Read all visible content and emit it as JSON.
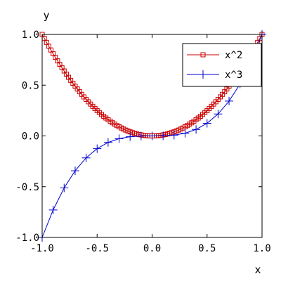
{
  "chart_data": {
    "type": "line",
    "xlabel": "x",
    "ylabel": "y",
    "xlim": [
      -1.0,
      1.0
    ],
    "ylim": [
      -1.0,
      1.0
    ],
    "grid": false,
    "legend_position": "top-right",
    "x_ticks": [
      -1.0,
      -0.5,
      0.0,
      0.5,
      1.0
    ],
    "x_tick_labels": [
      "-1.0",
      "-0.5",
      "0.0",
      "0.5",
      "1.0"
    ],
    "y_ticks": [
      -1.0,
      -0.5,
      0.0,
      0.5,
      1.0
    ],
    "y_tick_labels": [
      "-1.0",
      "-0.5",
      "0.0",
      "0.5",
      "1.0"
    ],
    "series": [
      {
        "name": "x^2",
        "color": "#cc0000",
        "marker": "square",
        "x": [
          -1.0,
          -0.98,
          -0.96,
          -0.94,
          -0.92,
          -0.9,
          -0.88,
          -0.86,
          -0.84,
          -0.82,
          -0.8,
          -0.78,
          -0.76,
          -0.74,
          -0.72,
          -0.7,
          -0.68,
          -0.66,
          -0.64,
          -0.62,
          -0.6,
          -0.58,
          -0.56,
          -0.54,
          -0.52,
          -0.5,
          -0.48,
          -0.46,
          -0.44,
          -0.42,
          -0.4,
          -0.38,
          -0.36,
          -0.34,
          -0.32,
          -0.3,
          -0.28,
          -0.26,
          -0.24,
          -0.22,
          -0.2,
          -0.18,
          -0.16,
          -0.14,
          -0.12,
          -0.1,
          -0.08,
          -0.06,
          -0.04,
          -0.02,
          0.0,
          0.02,
          0.04,
          0.06,
          0.08,
          0.1,
          0.12,
          0.14,
          0.16,
          0.18,
          0.2,
          0.22,
          0.24,
          0.26,
          0.28,
          0.3,
          0.32,
          0.34,
          0.36,
          0.38,
          0.4,
          0.42,
          0.44,
          0.46,
          0.48,
          0.5,
          0.52,
          0.54,
          0.56,
          0.58,
          0.6,
          0.62,
          0.64,
          0.66,
          0.68,
          0.7,
          0.72,
          0.74,
          0.76,
          0.78,
          0.8,
          0.82,
          0.84,
          0.86,
          0.88,
          0.9,
          0.92,
          0.94,
          0.96,
          0.98,
          1.0
        ],
        "y": [
          1.0,
          0.9604,
          0.9216,
          0.8836,
          0.8464,
          0.81,
          0.7744,
          0.7396,
          0.7056,
          0.6724,
          0.64,
          0.6084,
          0.5776,
          0.5476,
          0.5184,
          0.49,
          0.4624,
          0.4356,
          0.4096,
          0.3844,
          0.36,
          0.3364,
          0.3136,
          0.2916,
          0.2704,
          0.25,
          0.2304,
          0.2116,
          0.1936,
          0.1764,
          0.16,
          0.1444,
          0.1296,
          0.1156,
          0.1024,
          0.09,
          0.0784,
          0.0676,
          0.0576,
          0.0484,
          0.04,
          0.0324,
          0.0256,
          0.0196,
          0.0144,
          0.01,
          0.0064,
          0.0036,
          0.0016,
          0.0004,
          0.0,
          0.0004,
          0.0016,
          0.0036,
          0.0064,
          0.01,
          0.0144,
          0.0196,
          0.0256,
          0.0324,
          0.04,
          0.0484,
          0.0576,
          0.0676,
          0.0784,
          0.09,
          0.1024,
          0.1156,
          0.1296,
          0.1444,
          0.16,
          0.1764,
          0.1936,
          0.2116,
          0.2304,
          0.25,
          0.2704,
          0.2916,
          0.3136,
          0.3364,
          0.36,
          0.3844,
          0.4096,
          0.4356,
          0.4624,
          0.49,
          0.5184,
          0.5476,
          0.5776,
          0.6084,
          0.64,
          0.6724,
          0.7056,
          0.7396,
          0.7744,
          0.81,
          0.8464,
          0.8836,
          0.9216,
          0.9604,
          1.0
        ]
      },
      {
        "name": "x^3",
        "color": "#0000cc",
        "marker": "plus",
        "x": [
          -1.0,
          -0.9,
          -0.8,
          -0.7,
          -0.6,
          -0.5,
          -0.4,
          -0.3,
          -0.2,
          -0.1,
          0.0,
          0.1,
          0.2,
          0.3,
          0.4,
          0.5,
          0.6,
          0.7,
          0.8,
          0.9,
          1.0
        ],
        "y": [
          -1.0,
          -0.729,
          -0.512,
          -0.343,
          -0.216,
          -0.125,
          -0.064,
          -0.027,
          -0.008,
          -0.001,
          0.0,
          0.001,
          0.008,
          0.027,
          0.064,
          0.125,
          0.216,
          0.343,
          0.512,
          0.729,
          1.0
        ]
      }
    ]
  }
}
